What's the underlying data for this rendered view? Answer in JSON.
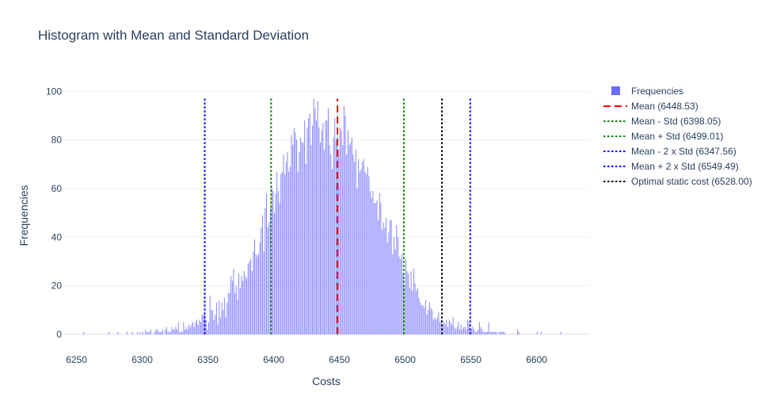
{
  "chart_data": {
    "type": "bar",
    "title": "Histogram with Mean and Standard Deviation",
    "xlabel": "Costs",
    "ylabel": "Frequencies",
    "xlim": [
      6240,
      6640
    ],
    "ylim": [
      -2,
      105
    ],
    "x_ticks": [
      6250,
      6300,
      6350,
      6400,
      6450,
      6500,
      6550,
      6600
    ],
    "y_ticks": [
      0,
      20,
      40,
      60,
      80,
      100
    ],
    "grid": true,
    "legend_position": "top-right",
    "histogram": {
      "name": "Frequencies",
      "color": "#6b6bff",
      "bin_width": 1,
      "bins_start": 6240,
      "values": [
        0,
        0,
        0,
        0,
        0,
        0,
        0,
        0,
        0,
        0,
        0,
        0,
        0,
        0,
        0,
        1,
        0,
        0,
        0,
        0,
        0,
        0,
        0,
        0,
        0,
        0,
        0,
        0,
        0,
        0,
        0,
        0,
        0,
        0,
        1,
        0,
        0,
        0,
        0,
        0,
        0,
        1,
        0,
        0,
        0,
        0,
        0,
        0,
        1,
        0,
        0,
        0,
        1,
        0,
        0,
        0,
        1,
        0,
        1,
        0,
        1,
        0,
        2,
        1,
        1,
        1,
        2,
        0,
        0,
        1,
        2,
        2,
        1,
        1,
        1,
        2,
        0,
        2,
        3,
        1,
        1,
        1,
        3,
        2,
        2,
        3,
        2,
        5,
        1,
        1,
        1,
        5,
        2,
        3,
        2,
        4,
        3,
        4,
        5,
        3,
        5,
        6,
        4,
        6,
        5,
        8,
        8,
        8,
        6,
        2,
        5,
        16,
        10,
        10,
        6,
        8,
        13,
        4,
        14,
        7,
        13,
        10,
        15,
        7,
        13,
        17,
        17,
        24,
        22,
        27,
        17,
        20,
        14,
        25,
        19,
        24,
        22,
        26,
        24,
        23,
        29,
        30,
        31,
        26,
        34,
        39,
        33,
        32,
        33,
        38,
        44,
        49,
        34,
        52,
        58,
        44,
        46,
        52,
        61,
        59,
        50,
        58,
        67,
        59,
        54,
        66,
        67,
        74,
        66,
        71,
        75,
        67,
        69,
        82,
        78,
        85,
        83,
        80,
        67,
        75,
        81,
        79,
        79,
        88,
        70,
        85,
        89,
        91,
        78,
        86,
        97,
        93,
        88,
        96,
        85,
        79,
        84,
        87,
        76,
        88,
        88,
        93,
        78,
        74,
        68,
        81,
        89,
        80,
        81,
        76,
        85,
        84,
        78,
        94,
        90,
        74,
        84,
        78,
        79,
        81,
        74,
        71,
        76,
        60,
        72,
        67,
        68,
        71,
        72,
        67,
        66,
        69,
        65,
        59,
        56,
        59,
        54,
        54,
        55,
        47,
        58,
        54,
        43,
        46,
        44,
        48,
        38,
        42,
        47,
        47,
        33,
        40,
        35,
        45,
        40,
        32,
        31,
        33,
        25,
        20,
        31,
        26,
        25,
        19,
        26,
        18,
        27,
        21,
        18,
        19,
        15,
        13,
        12,
        12,
        11,
        14,
        8,
        10,
        13,
        11,
        10,
        6,
        7,
        6,
        7,
        9,
        5,
        6,
        4,
        5,
        4,
        6,
        3,
        6,
        5,
        4,
        7,
        3,
        2,
        3,
        5,
        2,
        4,
        2,
        3,
        3,
        2,
        6,
        5,
        2,
        2,
        3,
        2,
        1,
        1,
        2,
        5,
        3,
        2,
        1,
        1,
        1,
        1,
        5,
        1,
        1,
        1,
        1,
        1,
        1,
        0,
        1,
        1,
        1,
        1,
        1,
        0,
        0,
        0,
        0,
        0,
        0,
        0,
        0,
        0,
        2,
        1,
        0,
        0,
        0,
        0,
        0,
        0,
        0,
        0,
        0,
        0,
        0,
        0,
        0,
        1,
        0,
        0,
        1,
        0,
        0,
        0,
        0,
        0,
        0,
        0,
        0,
        0,
        0,
        0,
        0,
        0,
        0,
        1
      ]
    },
    "lines": [
      {
        "name": "Mean (6448.53)",
        "x": 6448.53,
        "color": "#ff0000",
        "dash": "dash"
      },
      {
        "name": "Mean - Std (6398.05)",
        "x": 6398.05,
        "color": "#008000",
        "dash": "dot"
      },
      {
        "name": "Mean + Std (6499.01)",
        "x": 6499.01,
        "color": "#008000",
        "dash": "dot"
      },
      {
        "name": "Mean - 2 x Std (6347.56)",
        "x": 6347.56,
        "color": "#0000ff",
        "dash": "dot"
      },
      {
        "name": "Mean + 2 x Std (6549.49)",
        "x": 6549.49,
        "color": "#0000ff",
        "dash": "dot"
      },
      {
        "name": "Optimal static cost (6528.00)",
        "x": 6528.0,
        "color": "#000000",
        "dash": "dot"
      }
    ],
    "line_y_range": [
      0,
      97
    ]
  }
}
